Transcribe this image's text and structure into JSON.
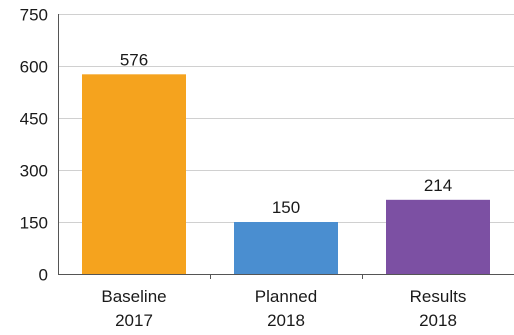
{
  "chart_data": {
    "type": "bar",
    "categories": [
      [
        "Baseline",
        "2017"
      ],
      [
        "Planned",
        "2018"
      ],
      [
        "Results",
        "2018"
      ]
    ],
    "values": [
      576,
      150,
      214
    ],
    "colors": [
      "#F5A31E",
      "#4A8ED0",
      "#7C50A3"
    ],
    "ylim": [
      0,
      750
    ],
    "yticks": [
      0,
      150,
      300,
      450,
      600,
      750
    ],
    "grid": true,
    "gridColor": "#d0d0d0",
    "axisColor": "#555555",
    "title": "",
    "xlabel": "",
    "ylabel": ""
  }
}
